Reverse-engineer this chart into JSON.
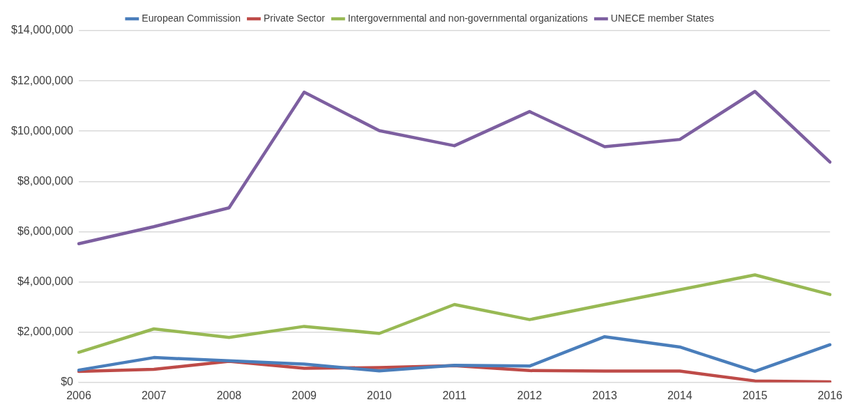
{
  "chart_data": {
    "type": "line",
    "categories": [
      "2006",
      "2007",
      "2008",
      "2009",
      "2010",
      "2011",
      "2012",
      "2013",
      "2014",
      "2015",
      "2016"
    ],
    "series": [
      {
        "name": "European Commission",
        "color": "#4a7ebb",
        "values": [
          490000,
          990000,
          860000,
          730000,
          460000,
          680000,
          650000,
          1820000,
          1410000,
          440000,
          1500000
        ]
      },
      {
        "name": "Private Sector",
        "color": "#be4b48",
        "values": [
          440000,
          520000,
          840000,
          560000,
          590000,
          670000,
          470000,
          450000,
          450000,
          60000,
          20000
        ]
      },
      {
        "name": "Intergovernmental and non-governmental organizations",
        "color": "#98b954",
        "values": [
          1200000,
          2130000,
          1790000,
          2230000,
          1950000,
          3100000,
          2500000,
          3100000,
          3690000,
          4280000,
          3500000
        ]
      },
      {
        "name": "UNECE member States",
        "color": "#7d5fa0",
        "values": [
          5520000,
          6200000,
          6950000,
          11550000,
          10020000,
          9420000,
          10780000,
          9380000,
          9670000,
          11580000,
          8770000
        ]
      }
    ],
    "ylim": [
      0,
      14000000
    ],
    "yticks": [
      {
        "value": 0,
        "label": "$0"
      },
      {
        "value": 2000000,
        "label": "$2,000,000"
      },
      {
        "value": 4000000,
        "label": "$4,000,000"
      },
      {
        "value": 6000000,
        "label": "$6,000,000"
      },
      {
        "value": 8000000,
        "label": "$8,000,000"
      },
      {
        "value": 10000000,
        "label": "$10,000,000"
      },
      {
        "value": 12000000,
        "label": "$12,000,000"
      },
      {
        "value": 14000000,
        "label": "$14,000,000"
      }
    ],
    "grid": "y",
    "legend": "top",
    "marker": "none",
    "line_style": "solid"
  }
}
